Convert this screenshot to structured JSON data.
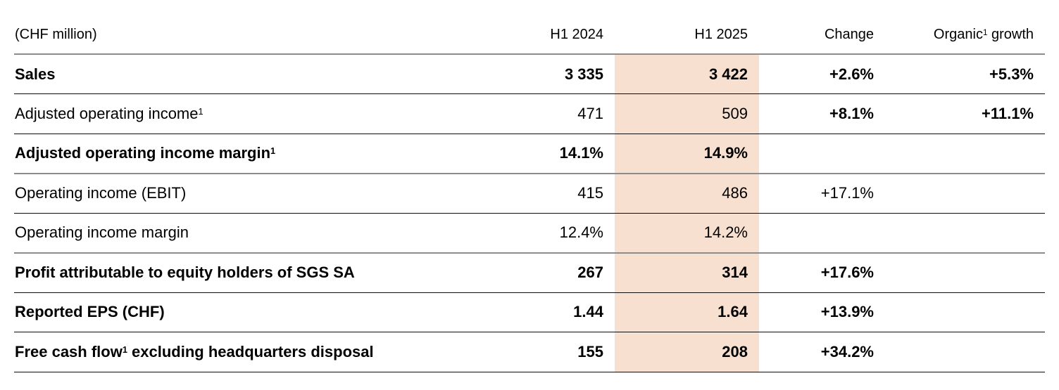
{
  "colors": {
    "highlight_column": "#f8e0d0",
    "rule_gray": "#8c8c8c",
    "rule_dark": "#0c0c0c",
    "text": "#000000",
    "background": "#ffffff"
  },
  "table": {
    "unit_label": "(CHF million)",
    "columns": [
      "(CHF million)",
      "H1 2024",
      "H1 2025",
      "Change",
      "Organic¹ growth"
    ],
    "highlighted_column": "H1 2025",
    "rows": [
      {
        "label": "Sales",
        "h1_2024": "3 335",
        "h1_2025": "3 422",
        "change": "+2.6%",
        "organic": "+5.3%",
        "bold": true,
        "change_bold": true,
        "divider": "dark"
      },
      {
        "label": "Adjusted operating income¹",
        "h1_2024": "471",
        "h1_2025": "509",
        "change": "+8.1%",
        "organic": "+11.1%",
        "bold": false,
        "change_bold": true,
        "divider": "dark"
      },
      {
        "label": "Adjusted operating income margin¹",
        "h1_2024": "14.1%",
        "h1_2025": "14.9%",
        "change": "",
        "organic": "",
        "bold": true,
        "change_bold": false,
        "divider": "gray"
      },
      {
        "label": "Operating income (EBIT)",
        "h1_2024": "415",
        "h1_2025": "486",
        "change": "+17.1%",
        "organic": "",
        "bold": false,
        "change_bold": false,
        "divider": "dark"
      },
      {
        "label": "Operating income margin",
        "h1_2024": "12.4%",
        "h1_2025": "14.2%",
        "change": "",
        "organic": "",
        "bold": false,
        "change_bold": false,
        "divider": "gray"
      },
      {
        "label": "Profit attributable to equity holders of SGS SA",
        "h1_2024": "267",
        "h1_2025": "314",
        "change": "+17.6%",
        "organic": "",
        "bold": true,
        "change_bold": true,
        "divider": "dark"
      },
      {
        "label": "Reported EPS (CHF)",
        "h1_2024": "1.44",
        "h1_2025": "1.64",
        "change": "+13.9%",
        "organic": "",
        "bold": true,
        "change_bold": true,
        "divider": "dark"
      },
      {
        "label": "Free cash flow¹ excluding headquarters disposal",
        "h1_2024": "155",
        "h1_2025": "208",
        "change": "+34.2%",
        "organic": "",
        "bold": true,
        "change_bold": true,
        "divider": "dark"
      }
    ]
  }
}
